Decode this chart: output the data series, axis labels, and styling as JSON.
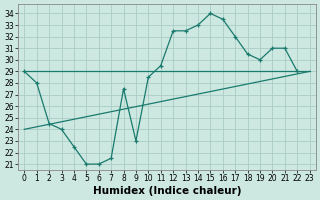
{
  "xlabel": "Humidex (Indice chaleur)",
  "xlim": [
    -0.5,
    23.5
  ],
  "ylim": [
    20.5,
    34.8
  ],
  "yticks": [
    21,
    22,
    23,
    24,
    25,
    26,
    27,
    28,
    29,
    30,
    31,
    32,
    33,
    34
  ],
  "xticks": [
    0,
    1,
    2,
    3,
    4,
    5,
    6,
    7,
    8,
    9,
    10,
    11,
    12,
    13,
    14,
    15,
    16,
    17,
    18,
    19,
    20,
    21,
    22,
    23
  ],
  "bg_color": "#cce8e0",
  "grid_color": "#aaccC4",
  "line_color": "#1a7a6e",
  "curve1_x": [
    0,
    1,
    2,
    3,
    4,
    5,
    6,
    7,
    8,
    9,
    10,
    11,
    12,
    13,
    14,
    15,
    16,
    17,
    18,
    19,
    20,
    21,
    22
  ],
  "curve1_y": [
    29.0,
    28.0,
    24.5,
    24.0,
    22.5,
    21.0,
    21.0,
    21.5,
    27.5,
    23.0,
    28.5,
    29.5,
    32.5,
    32.5,
    33.0,
    34.0,
    33.5,
    32.0,
    30.5,
    30.0,
    31.0,
    31.0,
    29.0
  ],
  "line2_x": [
    0,
    23
  ],
  "line2_y": [
    29.0,
    29.0
  ],
  "line3_x": [
    0,
    23
  ],
  "line3_y": [
    24.0,
    29.0
  ],
  "tick_fontsize": 5.5,
  "label_fontsize": 7.5
}
